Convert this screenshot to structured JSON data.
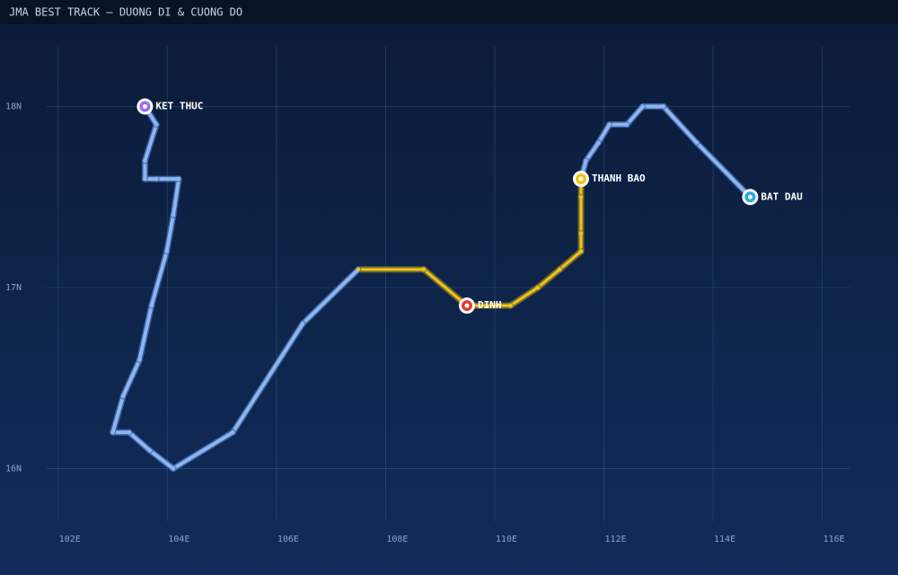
{
  "chart_data": {
    "type": "track",
    "title": "JMA BEST TRACK – DUONG DI & CUONG DO",
    "x": [
      114.68,
      113.7,
      113.09,
      112.71,
      112.42,
      112.1,
      111.9,
      111.67,
      111.58,
      111.58,
      111.58,
      111.58,
      111.19,
      110.79,
      110.29,
      109.49,
      108.7,
      107.5,
      106.48,
      105.2,
      104.11,
      103.68,
      103.3,
      103.0,
      103.19,
      103.49,
      103.71,
      103.99,
      104.11,
      104.21,
      103.8,
      103.59,
      103.59,
      103.8,
      103.59
    ],
    "y": [
      17.5,
      17.8,
      18.0,
      18.0,
      17.9,
      17.9,
      17.8,
      17.7,
      17.6,
      17.5,
      17.3,
      17.2,
      17.1,
      17.0,
      16.9,
      16.9,
      17.1,
      17.1,
      16.8,
      16.2,
      16.0,
      16.1,
      16.2,
      16.2,
      16.4,
      16.6,
      16.9,
      17.2,
      17.4,
      17.6,
      17.6,
      17.6,
      17.7,
      17.9,
      18.0
    ],
    "point_colors": [
      "#8fb4ee",
      "#8fb4ee",
      "#8fb4ee",
      "#8fb4ee",
      "#8fb4ee",
      "#8fb4ee",
      "#8fb4ee",
      "#8fb4ee",
      "#f2c418",
      "#f2c418",
      "#f2c418",
      "#f2c418",
      "#f2c418",
      "#f2c418",
      "#f2c418",
      "#f2c418",
      "#f2c418",
      "#f2c418",
      "#8fb4ee",
      "#8fb4ee",
      "#8fb4ee",
      "#8fb4ee",
      "#8fb4ee",
      "#8fb4ee",
      "#8fb4ee",
      "#8fb4ee",
      "#8fb4ee",
      "#8fb4ee",
      "#8fb4ee",
      "#8fb4ee",
      "#8fb4ee",
      "#8fb4ee",
      "#8fb4ee",
      "#8fb4ee",
      "#8fb4ee"
    ],
    "annotations": [
      {
        "point": 0,
        "label": "BAT DAU",
        "color": "#29a9e0"
      },
      {
        "point": 8,
        "label": "THANH BAO",
        "color": "#f2c418"
      },
      {
        "point": 15,
        "label": "DINH",
        "color": "#e53935"
      },
      {
        "point": 34,
        "label": "KET THUC",
        "color": "#9b6cf0"
      }
    ],
    "xlim": [
      101.79,
      116.5
    ],
    "ylim": [
      15.71,
      18.33
    ],
    "xticks": [
      {
        "value": 102,
        "label": "102E"
      },
      {
        "value": 104,
        "label": "104E"
      },
      {
        "value": 106,
        "label": "106E"
      },
      {
        "value": 108,
        "label": "108E"
      },
      {
        "value": 110,
        "label": "110E"
      },
      {
        "value": 112,
        "label": "112E"
      },
      {
        "value": 114,
        "label": "114E"
      },
      {
        "value": 116,
        "label": "116E"
      }
    ],
    "yticks": [
      {
        "value": 16,
        "label": "16N"
      },
      {
        "value": 17,
        "label": "17N"
      },
      {
        "value": 18,
        "label": "18N"
      }
    ],
    "grid": true
  }
}
